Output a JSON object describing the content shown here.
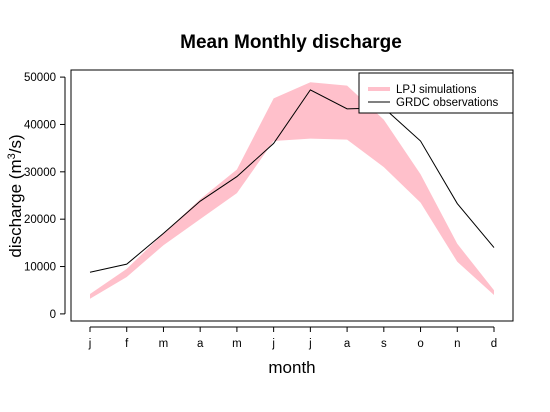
{
  "chart_data": {
    "type": "area",
    "title": "Mean Monthly discharge",
    "xlabel": "month",
    "ylabel_prefix": "discharge (m",
    "ylabel_sup": "3",
    "ylabel_suffix": "/s)",
    "categories": [
      "j",
      "f",
      "m",
      "a",
      "m",
      "j",
      "j",
      "a",
      "s",
      "o",
      "n",
      "d"
    ],
    "y_ticks": [
      0,
      10000,
      20000,
      30000,
      40000,
      50000
    ],
    "ylim": [
      -1500,
      51500
    ],
    "grid": false,
    "legend_position": "top-right",
    "series": [
      {
        "name": "LPJ simulations",
        "type": "band",
        "color": "#ffc0cb",
        "lower": [
          3200,
          7800,
          14500,
          20000,
          25500,
          36500,
          37000,
          36800,
          31000,
          23500,
          11000,
          4000
        ],
        "upper": [
          4200,
          9500,
          17000,
          24200,
          30500,
          45500,
          48900,
          48200,
          41000,
          29500,
          14800,
          5000
        ]
      },
      {
        "name": "GRDC observations",
        "type": "line",
        "color": "#000000",
        "values": [
          8800,
          10500,
          17000,
          23800,
          29000,
          36000,
          47300,
          43300,
          43500,
          36500,
          23300,
          14000
        ]
      }
    ]
  }
}
